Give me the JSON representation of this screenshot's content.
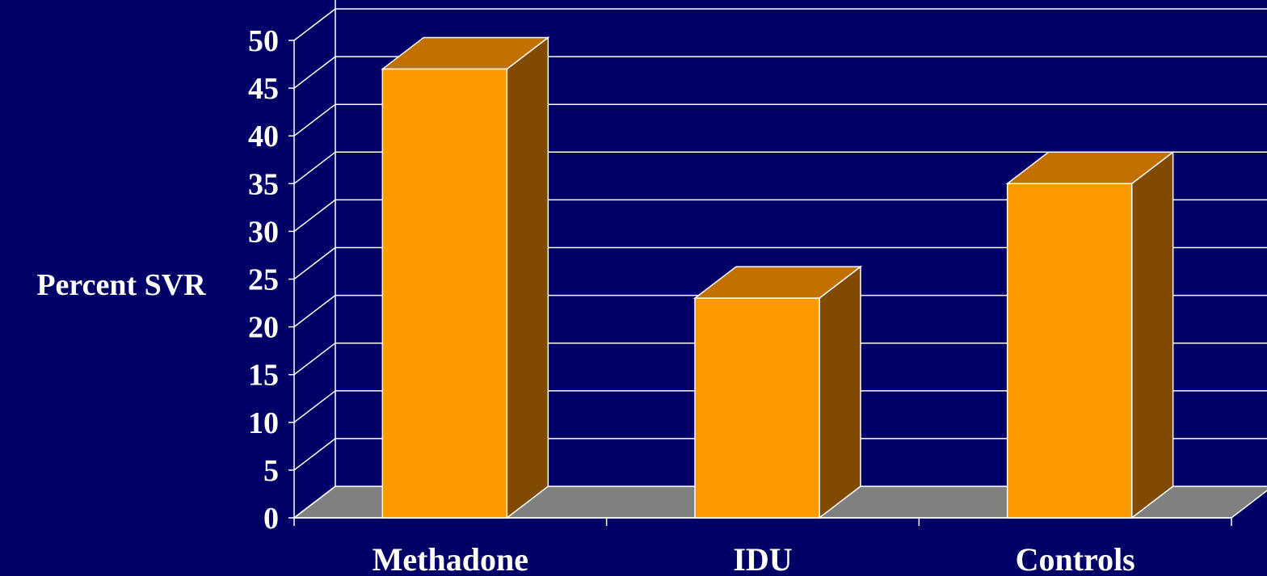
{
  "chart_data": {
    "type": "bar",
    "style": "3d",
    "categories": [
      "Methadone",
      "IDU",
      "Controls"
    ],
    "series": [
      {
        "values": [
          47,
          23,
          35
        ]
      }
    ],
    "title": "",
    "xlabel": "",
    "ylabel": "Percent SVR",
    "ylim": [
      0,
      50
    ],
    "yticks": [
      "0",
      "5",
      "10",
      "15",
      "20",
      "25",
      "30",
      "35",
      "40",
      "45",
      "50"
    ],
    "grid": true,
    "legend": "none"
  },
  "colors": {
    "background": "#000066",
    "bar_front": "#FF9900",
    "bar_top": "#C27000",
    "bar_side": "#804A00",
    "floor": "#808080",
    "grid": "#FFFFFF",
    "text": "#FFFFFF"
  }
}
